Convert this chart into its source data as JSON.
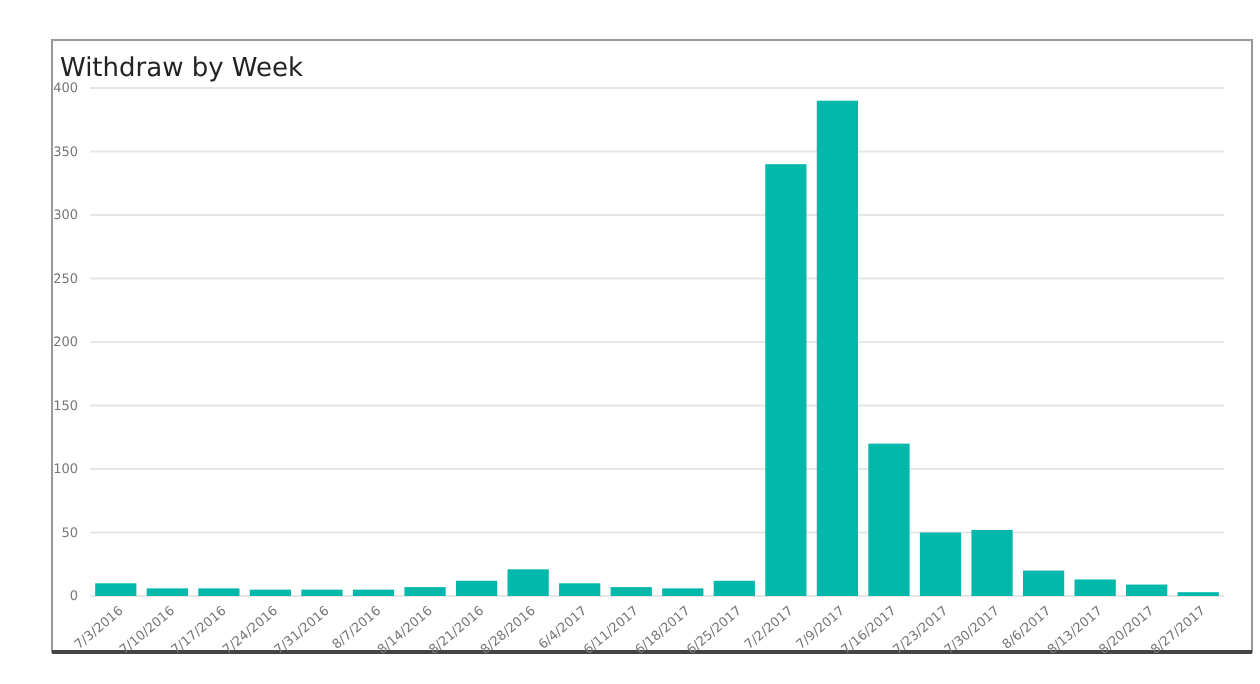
{
  "chart_data": {
    "type": "bar",
    "title": "Withdraw by Week",
    "categories": [
      "7/3/2016",
      "7/10/2016",
      "7/17/2016",
      "7/24/2016",
      "7/31/2016",
      "8/7/2016",
      "8/14/2016",
      "8/21/2016",
      "8/28/2016",
      "6/4/2017",
      "6/11/2017",
      "6/18/2017",
      "6/25/2017",
      "7/2/2017",
      "7/9/2017",
      "7/16/2017",
      "7/23/2017",
      "7/30/2017",
      "8/6/2017",
      "8/13/2017",
      "8/20/2017",
      "8/27/2017"
    ],
    "values": [
      10,
      6,
      6,
      5,
      5,
      5,
      7,
      12,
      21,
      10,
      7,
      6,
      12,
      340,
      390,
      120,
      50,
      52,
      20,
      13,
      9,
      3
    ],
    "color": "#01b8aa",
    "ylim": [
      0,
      400
    ],
    "yticks": [
      0,
      50,
      100,
      150,
      200,
      250,
      300,
      350,
      400
    ],
    "grid": "y"
  }
}
